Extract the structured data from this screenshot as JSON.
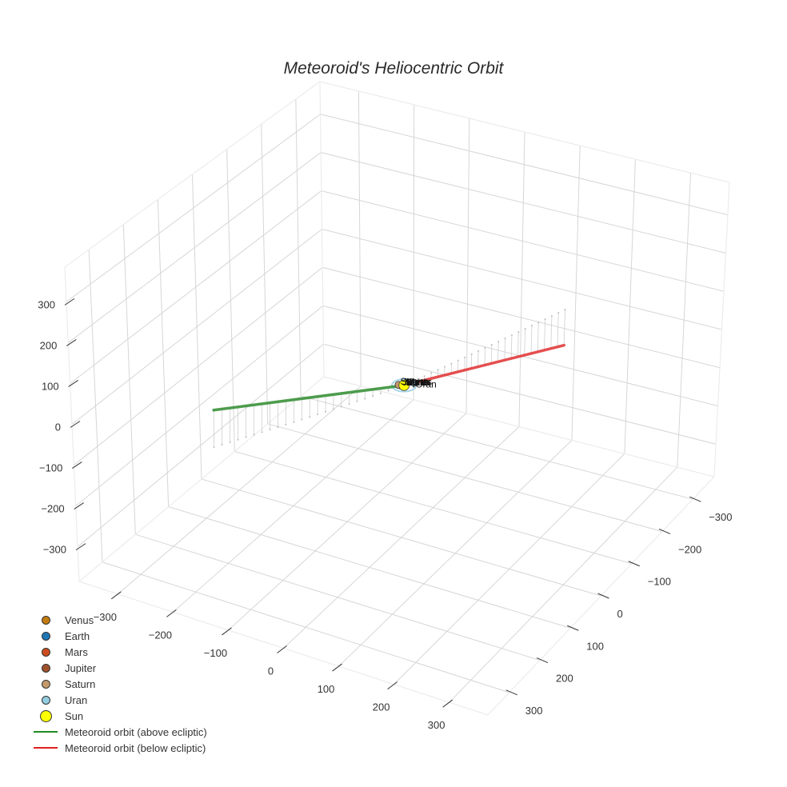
{
  "title": "Meteoroid's Heliocentric Orbit",
  "chart_data": {
    "type": "scatter3d",
    "title": "Meteoroid's Heliocentric Orbit",
    "axes": {
      "x": {
        "range": [
          -370,
          370
        ],
        "ticks": [
          -300,
          -200,
          -100,
          0,
          100,
          200,
          300
        ],
        "tick_labels": [
          "−300",
          "−200",
          "−100",
          "0",
          "100",
          "200",
          "300"
        ]
      },
      "y": {
        "range": [
          -370,
          370
        ],
        "ticks": [
          -300,
          -200,
          -100,
          0,
          100,
          200,
          300
        ],
        "tick_labels": [
          "−300",
          "−200",
          "−100",
          "0",
          "100",
          "200",
          "300"
        ]
      },
      "z": {
        "range": [
          -385,
          385
        ],
        "ticks": [
          -300,
          -200,
          -100,
          0,
          100,
          200,
          300
        ],
        "tick_labels": [
          "−300",
          "−200",
          "−100",
          "0",
          "100",
          "200",
          "300"
        ]
      }
    },
    "grid": true,
    "legend_position": "bottom-left",
    "series": [
      {
        "name": "Venus",
        "type": "marker",
        "color": "#c27c0e",
        "point": [
          -0.7,
          0.2,
          0
        ],
        "label": "Venus"
      },
      {
        "name": "Earth",
        "type": "marker",
        "color": "#1f77b4",
        "point": [
          1.0,
          0.1,
          0
        ],
        "label": "Earth"
      },
      {
        "name": "Mars",
        "type": "marker",
        "color": "#cc4c1f",
        "point": [
          0.5,
          -1.4,
          0
        ],
        "label": "Mars"
      },
      {
        "name": "Jupiter",
        "type": "marker",
        "color": "#a0522d",
        "point": [
          -4.5,
          2.5,
          0
        ],
        "label": "Jupiter"
      },
      {
        "name": "Saturn",
        "type": "marker",
        "color": "#c49a6c",
        "point": [
          -8,
          3,
          0
        ],
        "label": "Saturn"
      },
      {
        "name": "Uran",
        "type": "marker",
        "color": "#93cde0",
        "point": [
          10,
          -14,
          0
        ],
        "label": "Uran",
        "orbit_radius": 19
      },
      {
        "name": "Sun",
        "type": "marker",
        "color": "#ffff00",
        "point": [
          0,
          0,
          0
        ],
        "label": "Sun"
      },
      {
        "name": "Meteoroid orbit (above ecliptic)",
        "type": "line",
        "color": "#2e8b2e",
        "start": [
          -157,
          313,
          91
        ],
        "end": [
          0,
          0,
          0
        ]
      },
      {
        "name": "Meteoroid orbit (below ecliptic)",
        "type": "line",
        "color": "#e03030",
        "start": [
          0,
          0,
          0
        ],
        "end": [
          110,
          -318,
          -93
        ]
      }
    ]
  },
  "legend": [
    {
      "label": "Venus",
      "kind": "dot",
      "color": "#c27c0e",
      "size": 9
    },
    {
      "label": "Earth",
      "kind": "dot",
      "color": "#1f77b4",
      "size": 9
    },
    {
      "label": "Mars",
      "kind": "dot",
      "color": "#cc4c1f",
      "size": 9
    },
    {
      "label": "Jupiter",
      "kind": "dot",
      "color": "#a0522d",
      "size": 9
    },
    {
      "label": "Saturn",
      "kind": "dot",
      "color": "#c49a6c",
      "size": 9
    },
    {
      "label": "Uran",
      "kind": "dot",
      "color": "#93cde0",
      "size": 9
    },
    {
      "label": "Sun",
      "kind": "dot",
      "color": "#ffff00",
      "size": 13
    },
    {
      "label": "Meteoroid orbit (above ecliptic)",
      "kind": "line",
      "color": "#228b22"
    },
    {
      "label": "Meteoroid orbit (below ecliptic)",
      "kind": "line",
      "color": "#e02020"
    }
  ]
}
